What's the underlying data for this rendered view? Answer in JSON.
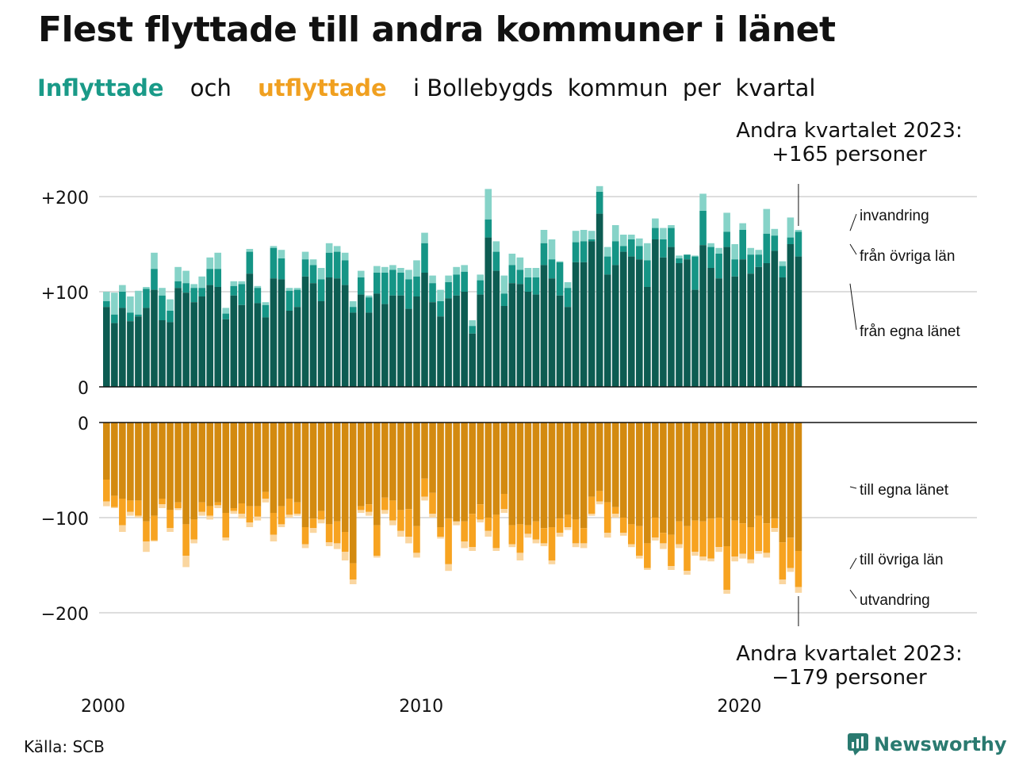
{
  "title": "Flest flyttade till andra kommuner i länet",
  "subtitle": {
    "in_word": "Inflyttade",
    "and_word": "och",
    "out_word": "utflyttade",
    "rest": "i Bollebygds  kommun  per  kvartal"
  },
  "annotation_top": {
    "line1": "Andra kvartalet 2023:",
    "line2": "+165 personer"
  },
  "annotation_bottom": {
    "line1": "Andra kvartalet 2023:",
    "line2": "−179 personer"
  },
  "source": "Källa: SCB",
  "brand": "Newsworthy",
  "colors": {
    "in_dark": "#0d5c52",
    "in_mid": "#159586",
    "in_light": "#86d3c8",
    "out_dark": "#d38a10",
    "out_mid": "#f7a320",
    "out_light": "#fad6a0",
    "axis": "#111111",
    "grid": "#dddddd"
  },
  "chart_data": {
    "type": "bar",
    "x_start": "2000 Q1",
    "x_ticks": [
      "2000",
      "2010",
      "2020"
    ],
    "in_ticks": [
      "+200",
      "+100",
      "0"
    ],
    "out_ticks": [
      "0",
      "−100",
      "−200"
    ],
    "in_ylim": [
      0,
      200
    ],
    "out_ylim": [
      -200,
      0
    ],
    "in_series_names": [
      "från egna länet",
      "från övriga län",
      "invandring"
    ],
    "out_series_names": [
      "till egna länet",
      "till övriga län",
      "utvandring"
    ],
    "in_total": [
      100,
      99,
      107,
      95,
      101,
      105,
      141,
      104,
      92,
      126,
      122,
      108,
      116,
      136,
      141,
      83,
      111,
      111,
      145,
      106,
      89,
      148,
      144,
      104,
      104,
      142,
      134,
      125,
      151,
      148,
      141,
      90,
      122,
      96,
      127,
      126,
      128,
      125,
      123,
      133,
      162,
      117,
      102,
      117,
      126,
      128,
      70,
      118,
      208,
      153,
      117,
      140,
      136,
      125,
      125,
      165,
      155,
      132,
      110,
      164,
      165,
      164,
      211,
      147,
      170,
      160,
      160,
      156,
      151,
      177,
      167,
      170,
      138,
      139,
      138,
      203,
      151,
      146,
      183,
      150,
      172,
      146,
      144,
      187,
      166,
      132,
      178,
      165
    ],
    "in_own": [
      84,
      67,
      83,
      69,
      74,
      83,
      102,
      70,
      68,
      104,
      99,
      89,
      95,
      107,
      105,
      71,
      96,
      86,
      119,
      88,
      73,
      114,
      113,
      80,
      84,
      116,
      109,
      90,
      115,
      114,
      107,
      78,
      97,
      78,
      98,
      87,
      96,
      96,
      82,
      95,
      120,
      89,
      74,
      93,
      96,
      100,
      56,
      97,
      157,
      122,
      85,
      109,
      108,
      100,
      97,
      128,
      114,
      96,
      84,
      131,
      131,
      153,
      182,
      118,
      128,
      142,
      137,
      134,
      105,
      155,
      136,
      147,
      130,
      134,
      102,
      149,
      125,
      114,
      147,
      116,
      134,
      119,
      126,
      130,
      143,
      115,
      150,
      137
    ],
    "in_other": [
      90,
      76,
      100,
      78,
      76,
      103,
      124,
      96,
      80,
      111,
      109,
      104,
      104,
      124,
      124,
      77,
      106,
      108,
      142,
      104,
      86,
      146,
      135,
      101,
      102,
      134,
      128,
      113,
      141,
      142,
      133,
      84,
      115,
      94,
      120,
      120,
      123,
      120,
      113,
      116,
      151,
      109,
      90,
      110,
      118,
      121,
      64,
      112,
      176,
      142,
      98,
      128,
      123,
      115,
      115,
      151,
      134,
      131,
      104,
      152,
      153,
      155,
      205,
      137,
      153,
      148,
      155,
      148,
      133,
      167,
      155,
      167,
      135,
      139,
      137,
      185,
      147,
      140,
      163,
      134,
      165,
      139,
      139,
      161,
      159,
      127,
      157,
      163
    ],
    "out_total": [
      -88,
      -90,
      -115,
      -98,
      -100,
      -136,
      -125,
      -90,
      -115,
      -92,
      -152,
      -127,
      -98,
      -102,
      -90,
      -124,
      -96,
      -101,
      -110,
      -103,
      -84,
      -125,
      -110,
      -100,
      -98,
      -132,
      -116,
      -106,
      -130,
      -133,
      -145,
      -170,
      -95,
      -98,
      -142,
      -96,
      -108,
      -120,
      -127,
      -142,
      -82,
      -100,
      -122,
      -156,
      -108,
      -132,
      -135,
      -105,
      -120,
      -135,
      -95,
      -131,
      -145,
      -121,
      -127,
      -130,
      -149,
      -120,
      -113,
      -131,
      -132,
      -98,
      -86,
      -121,
      -100,
      -119,
      -131,
      -143,
      -155,
      -124,
      -133,
      -155,
      -132,
      -160,
      -140,
      -145,
      -146,
      -136,
      -180,
      -146,
      -143,
      -148,
      -138,
      -142,
      -115,
      -170,
      -157,
      -179
    ],
    "out_own": [
      -60,
      -77,
      -80,
      -82,
      -82,
      -104,
      -98,
      -80,
      -92,
      -84,
      -107,
      -102,
      -84,
      -88,
      -84,
      -95,
      -90,
      -85,
      -88,
      -88,
      -73,
      -95,
      -88,
      -80,
      -84,
      -110,
      -101,
      -93,
      -107,
      -104,
      -115,
      -148,
      -88,
      -86,
      -108,
      -79,
      -82,
      -92,
      -91,
      -109,
      -59,
      -74,
      -110,
      -101,
      -104,
      -104,
      -96,
      -86,
      -100,
      -97,
      -75,
      -108,
      -107,
      -108,
      -104,
      -111,
      -110,
      -101,
      -97,
      -102,
      -111,
      -78,
      -72,
      -84,
      -89,
      -100,
      -107,
      -109,
      -127,
      -100,
      -116,
      -118,
      -104,
      -109,
      -103,
      -104,
      -101,
      -100,
      -130,
      -103,
      -106,
      -110,
      -98,
      -106,
      -101,
      -126,
      -121,
      -135
    ],
    "out_other": [
      -83,
      -89,
      -108,
      -94,
      -98,
      -125,
      -124,
      -86,
      -111,
      -90,
      -140,
      -123,
      -94,
      -98,
      -87,
      -121,
      -93,
      -96,
      -105,
      -99,
      -80,
      -118,
      -107,
      -97,
      -96,
      -128,
      -111,
      -102,
      -126,
      -127,
      -136,
      -165,
      -92,
      -94,
      -140,
      -92,
      -103,
      -114,
      -120,
      -137,
      -78,
      -96,
      -120,
      -149,
      -104,
      -125,
      -131,
      -102,
      -114,
      -132,
      -91,
      -128,
      -137,
      -117,
      -123,
      -127,
      -145,
      -116,
      -110,
      -127,
      -127,
      -96,
      -83,
      -116,
      -96,
      -116,
      -128,
      -140,
      -153,
      -121,
      -127,
      -151,
      -128,
      -156,
      -136,
      -141,
      -143,
      -131,
      -176,
      -141,
      -138,
      -144,
      -135,
      -137,
      -111,
      -165,
      -153,
      -173
    ]
  }
}
